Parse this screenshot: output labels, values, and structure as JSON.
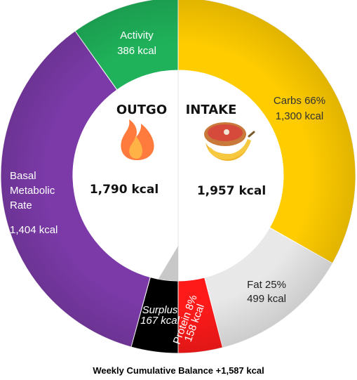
{
  "chart_data": {
    "type": "pie",
    "style": "donut",
    "outgo": {
      "title": "OUTGO",
      "total": "1,790 kcal",
      "icon": "fire-icon",
      "segments": [
        {
          "key": "surplus",
          "label": "Surplus",
          "value_label": "167 kcal",
          "value": 167,
          "color": "#000000",
          "text_color": "#ffffff"
        },
        {
          "key": "bmr",
          "label": "Basal\nMetabolic\nRate",
          "value_label": "1,404 kcal",
          "value": 1404,
          "color": "#7b3aa8",
          "text_color": "#ffffff"
        },
        {
          "key": "activity",
          "label": "Activity",
          "value_label": "386 kcal",
          "value": 386,
          "color": "#1fb25a",
          "text_color": "#ffffff"
        }
      ]
    },
    "intake": {
      "title": "INTAKE",
      "total": "1,957 kcal",
      "icon": "food-icon",
      "segments": [
        {
          "key": "carbs",
          "label": "Carbs 66%",
          "value_label": "1,300 kcal",
          "value": 1300,
          "color": "#ffcc00",
          "text_color": "#333333"
        },
        {
          "key": "fat",
          "label": "Fat 25%",
          "value_label": "499 kcal",
          "value": 499,
          "color": "#e8e8e8",
          "text_color": "#222222"
        },
        {
          "key": "protein",
          "label": "Protein 8%",
          "value_label": "158 kcal",
          "value": 158,
          "color": "#ff1a1a",
          "text_color": "#ffffff"
        }
      ]
    },
    "footer": "Weekly Cumulative Balance +1,587 kcal"
  }
}
